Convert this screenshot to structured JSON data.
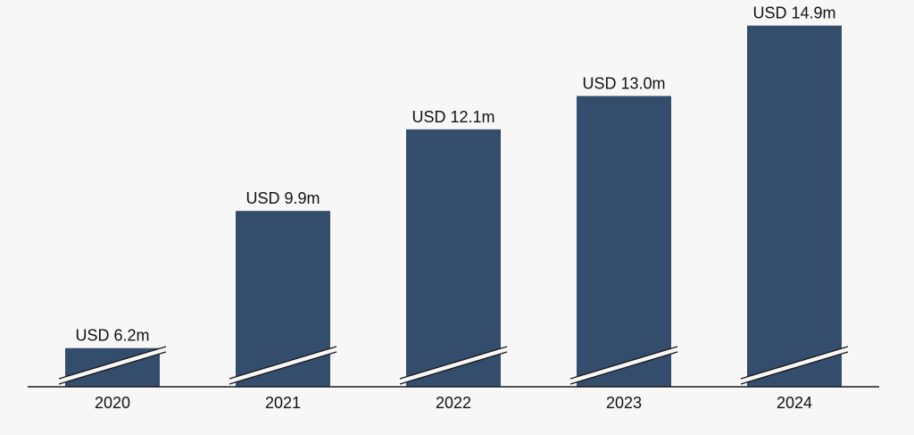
{
  "chart_data": {
    "type": "bar",
    "title": "",
    "xlabel": "",
    "ylabel": "",
    "categories": [
      "2020",
      "2021",
      "2022",
      "2023",
      "2024"
    ],
    "values": [
      6.2,
      9.9,
      12.1,
      13.0,
      14.9
    ],
    "value_labels": [
      "USD 6.2m",
      "USD 9.9m",
      "USD 12.1m",
      "USD 13.0m",
      "USD 14.9m"
    ],
    "axis_break": true,
    "grid": false,
    "legend": "none",
    "colors": {
      "bar": "#354d6c",
      "background": "#f7f7f7",
      "axis": "#1a1a1a",
      "text": "#111111"
    }
  }
}
